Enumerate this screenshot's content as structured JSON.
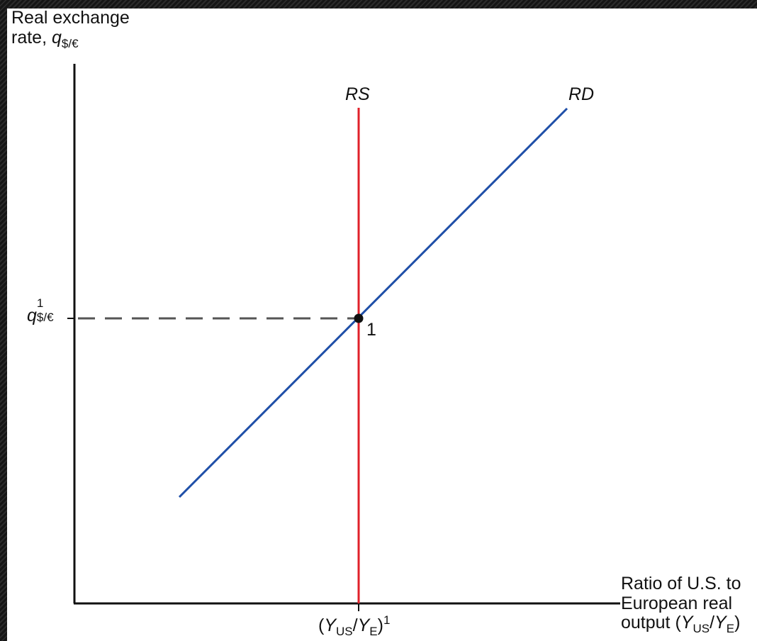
{
  "y_axis_label": {
    "line1": "Real exchange",
    "line2": "rate, ",
    "var": "q",
    "sub": "$/€"
  },
  "x_axis_label": {
    "line1": "Ratio of U.S. to",
    "line2": "European real",
    "line3": "output (",
    "var1": "Y",
    "sub1": "US",
    "slash": "/",
    "var2": "Y",
    "sub2": "E",
    "close": ")"
  },
  "curves": {
    "rs_label": "RS",
    "rd_label": "RD"
  },
  "equilibrium": {
    "point_label": "1"
  },
  "y_tick": {
    "var": "q",
    "sup": "1",
    "sub": "$/€"
  },
  "x_tick": {
    "open": "(",
    "var1": "Y",
    "sub1": "US",
    "slash": "/",
    "var2": "Y",
    "sub2": "E",
    "close": ")",
    "sup": "1"
  },
  "colors": {
    "rs": "#e0202a",
    "rd": "#1f4fa8",
    "axis": "#111111",
    "dashed": "#555555"
  }
}
